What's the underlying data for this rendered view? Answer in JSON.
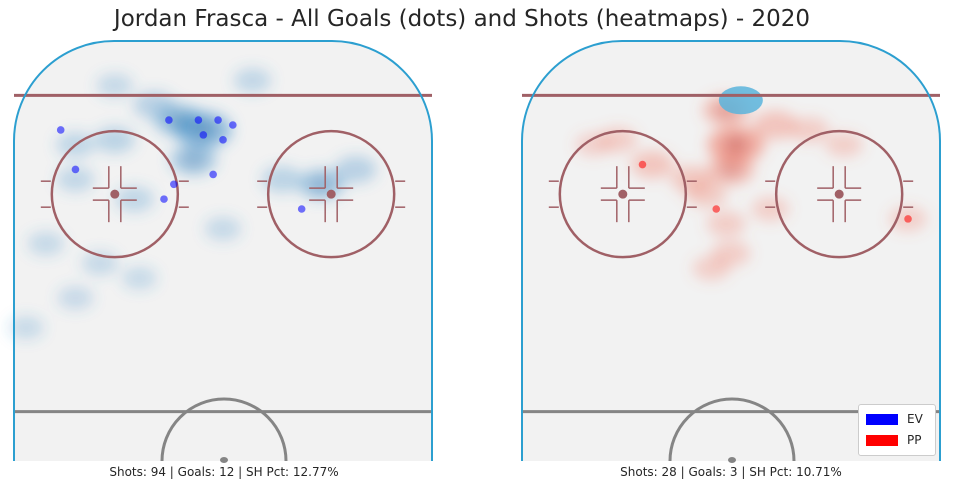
{
  "title": "Jordan Frasca - All Goals (dots) and Shots (heatmaps) - 2020",
  "colors": {
    "ice": "#f2f2f2",
    "boards": "#2c9fd0",
    "red_line": "#a06066",
    "blue_line": "#858585",
    "ev": "#0000ff",
    "pp": "#ff0000",
    "ev_heat": "#3a8cc8",
    "pp_heat": "#f0705a"
  },
  "legend": {
    "position": "lower-right",
    "items": [
      {
        "label": "EV",
        "color": "#0000ff"
      },
      {
        "label": "PP",
        "color": "#ff0000"
      }
    ]
  },
  "chart_data": [
    {
      "type": "scatter",
      "strength": "EV",
      "caption": "Shots: 94 | Goals: 12 | SH Pct: 12.77%",
      "x_range": [
        -42.5,
        42.5
      ],
      "y_range": [
        100,
        15
      ],
      "grid": false,
      "goals": [
        {
          "x": -33,
          "y": 82
        },
        {
          "x": -30,
          "y": 74
        },
        {
          "x": -11,
          "y": 84
        },
        {
          "x": -5,
          "y": 84
        },
        {
          "x": -1,
          "y": 84
        },
        {
          "x": 2,
          "y": 83
        },
        {
          "x": -4,
          "y": 81
        },
        {
          "x": 0,
          "y": 80
        },
        {
          "x": -2,
          "y": 73
        },
        {
          "x": -10,
          "y": 71
        },
        {
          "x": -12,
          "y": 68
        },
        {
          "x": 16,
          "y": 66
        }
      ],
      "shot_density": [
        {
          "x": -4,
          "y": 82,
          "w": 1.0
        },
        {
          "x": -9,
          "y": 84,
          "w": 0.7
        },
        {
          "x": -14,
          "y": 87,
          "w": 0.4
        },
        {
          "x": -6,
          "y": 76,
          "w": 0.6
        },
        {
          "x": -22,
          "y": 80,
          "w": 0.35
        },
        {
          "x": -30,
          "y": 79,
          "w": 0.3
        },
        {
          "x": 20,
          "y": 71,
          "w": 0.6
        },
        {
          "x": 27,
          "y": 74,
          "w": 0.4
        },
        {
          "x": 12,
          "y": 72,
          "w": 0.35
        },
        {
          "x": -30,
          "y": 72,
          "w": 0.25
        },
        {
          "x": -18,
          "y": 68,
          "w": 0.3
        },
        {
          "x": -36,
          "y": 59,
          "w": 0.2
        },
        {
          "x": -25,
          "y": 55,
          "w": 0.2
        },
        {
          "x": -30,
          "y": 48,
          "w": 0.18
        },
        {
          "x": 0,
          "y": 62,
          "w": 0.2
        },
        {
          "x": 6,
          "y": 92,
          "w": 0.25
        },
        {
          "x": -22,
          "y": 91,
          "w": 0.2
        },
        {
          "x": -40,
          "y": 42,
          "w": 0.15
        },
        {
          "x": -17,
          "y": 52,
          "w": 0.15
        }
      ]
    },
    {
      "type": "scatter",
      "strength": "PP",
      "caption": "Shots: 28 | Goals: 3 | SH Pct: 10.71%",
      "x_range": [
        -42.5,
        42.5
      ],
      "y_range": [
        100,
        15
      ],
      "grid": false,
      "goals": [
        {
          "x": -18,
          "y": 75
        },
        {
          "x": -3,
          "y": 66
        },
        {
          "x": 36,
          "y": 64
        }
      ],
      "shot_density": [
        {
          "x": 1,
          "y": 79,
          "w": 1.0
        },
        {
          "x": 0,
          "y": 74,
          "w": 0.6
        },
        {
          "x": -1,
          "y": 86,
          "w": 0.6
        },
        {
          "x": 9,
          "y": 83,
          "w": 0.5
        },
        {
          "x": -16,
          "y": 75,
          "w": 0.45
        },
        {
          "x": -8,
          "y": 72,
          "w": 0.4
        },
        {
          "x": -5,
          "y": 69,
          "w": 0.35
        },
        {
          "x": 16,
          "y": 82,
          "w": 0.3
        },
        {
          "x": -23,
          "y": 80,
          "w": 0.3
        },
        {
          "x": 23,
          "y": 79,
          "w": 0.25
        },
        {
          "x": -1,
          "y": 63,
          "w": 0.3
        },
        {
          "x": 0,
          "y": 57,
          "w": 0.3
        },
        {
          "x": -4,
          "y": 54,
          "w": 0.25
        },
        {
          "x": 8,
          "y": 66,
          "w": 0.25
        },
        {
          "x": 36,
          "y": 64,
          "w": 0.25
        },
        {
          "x": -28,
          "y": 79,
          "w": 0.2
        }
      ],
      "hot_spot": {
        "x": 2,
        "y": 88
      }
    }
  ]
}
